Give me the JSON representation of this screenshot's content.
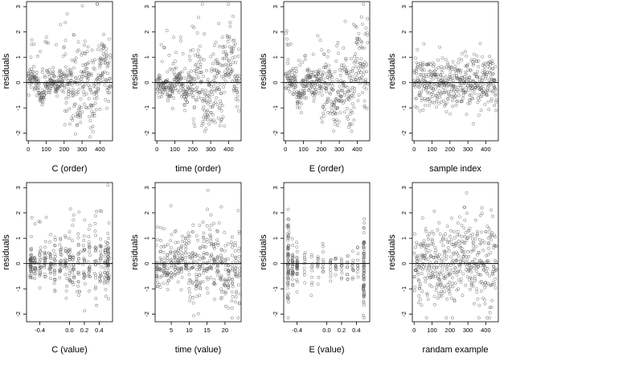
{
  "chart_data": [
    {
      "type": "scatter",
      "xlabel": "C (order)",
      "ylabel": "residuals",
      "xticks": [
        0,
        100,
        200,
        300,
        400
      ],
      "xticklabels": [
        "0",
        "100",
        "200",
        "300",
        "400"
      ],
      "yticks": [
        -2,
        -1,
        0,
        1,
        2,
        3
      ],
      "xlim": [
        -10,
        470
      ],
      "ylim": [
        -2.3,
        3.2
      ],
      "hline": 0,
      "pattern": "order-c"
    },
    {
      "type": "scatter",
      "xlabel": "time (order)",
      "ylabel": "residuals",
      "xticks": [
        0,
        100,
        200,
        300,
        400
      ],
      "xticklabels": [
        "0",
        "100",
        "200",
        "300",
        "400"
      ],
      "yticks": [
        -2,
        -1,
        0,
        1,
        2,
        3
      ],
      "xlim": [
        -10,
        470
      ],
      "ylim": [
        -2.3,
        3.2
      ],
      "hline": 0,
      "pattern": "order-time"
    },
    {
      "type": "scatter",
      "xlabel": "E (order)",
      "ylabel": "residuals",
      "xticks": [
        0,
        100,
        200,
        300,
        400
      ],
      "xticklabels": [
        "0",
        "100",
        "200",
        "300",
        "400"
      ],
      "yticks": [
        -2,
        -1,
        0,
        1,
        2,
        3
      ],
      "xlim": [
        -10,
        470
      ],
      "ylim": [
        -2.3,
        3.2
      ],
      "hline": 0,
      "pattern": "order-e"
    },
    {
      "type": "scatter",
      "xlabel": "sample index",
      "ylabel": "residuals",
      "xticks": [
        0,
        100,
        200,
        300,
        400
      ],
      "xticklabels": [
        "0",
        "100",
        "200",
        "300",
        "400"
      ],
      "yticks": [
        -2,
        -1,
        0,
        1,
        2,
        3
      ],
      "xlim": [
        -10,
        470
      ],
      "ylim": [
        -2.3,
        3.2
      ],
      "hline": 0,
      "pattern": "index"
    },
    {
      "type": "scatter",
      "xlabel": "C (value)",
      "ylabel": "residuals",
      "xticks": [
        -0.4,
        0.0,
        0.2,
        0.4
      ],
      "xticklabels": [
        "-0.4",
        "0.0",
        "0.2",
        "0.4"
      ],
      "yticks": [
        -2,
        -1,
        0,
        1,
        2,
        3
      ],
      "xlim": [
        -0.58,
        0.58
      ],
      "ylim": [
        -2.3,
        3.2
      ],
      "hline": 0,
      "pattern": "value-c"
    },
    {
      "type": "scatter",
      "xlabel": "time (value)",
      "ylabel": "residuals",
      "xticks": [
        5,
        10,
        15,
        20
      ],
      "xticklabels": [
        "5",
        "10",
        "15",
        "20"
      ],
      "yticks": [
        -2,
        -1,
        0,
        1,
        2,
        3
      ],
      "xlim": [
        0.5,
        24.5
      ],
      "ylim": [
        -2.3,
        3.2
      ],
      "hline": 0,
      "pattern": "value-time"
    },
    {
      "type": "scatter",
      "xlabel": "E (value)",
      "ylabel": "residuals",
      "xticks": [
        -0.4,
        0.0,
        0.2,
        0.4
      ],
      "xticklabels": [
        "-0.4",
        "0.0",
        "0.2",
        "0.4"
      ],
      "yticks": [
        -2,
        -1,
        0,
        1,
        2,
        3
      ],
      "xlim": [
        -0.58,
        0.58
      ],
      "ylim": [
        -2.3,
        3.2
      ],
      "hline": 0,
      "pattern": "value-e"
    },
    {
      "type": "scatter",
      "xlabel": "randam example",
      "ylabel": "residuals",
      "xticks": [
        0,
        100,
        200,
        300,
        400
      ],
      "xticklabels": [
        "0",
        "100",
        "200",
        "300",
        "400"
      ],
      "yticks": [
        -2,
        -1,
        0,
        1,
        2,
        3
      ],
      "xlim": [
        -10,
        470
      ],
      "ylim": [
        -2.3,
        3.2
      ],
      "hline": 0,
      "pattern": "random"
    }
  ],
  "colors": {
    "point": "#555555",
    "axis": "#000000",
    "background": "#ffffff"
  }
}
